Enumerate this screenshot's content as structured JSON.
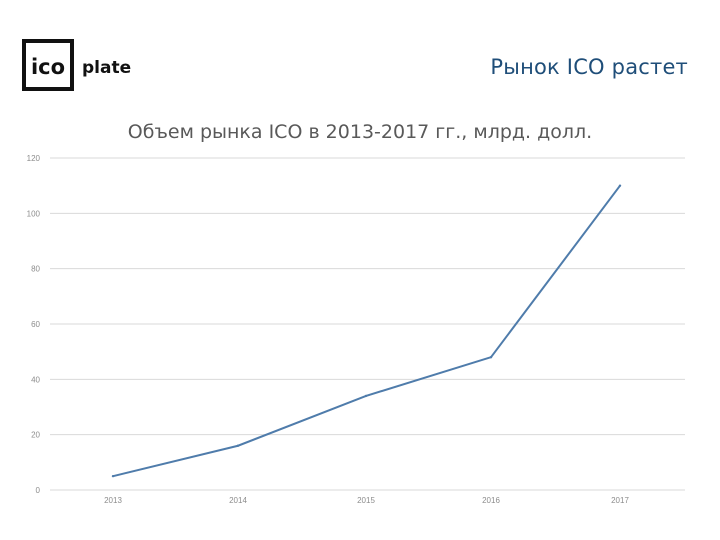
{
  "header": {
    "logo": {
      "left_text": "ico",
      "right_text": "plate",
      "icon": "icoplate-logo"
    },
    "slide_title": "Рынок ICO растет"
  },
  "chart_data": {
    "type": "line",
    "title": "Объем рынка ICO в 2013-2017 гг., млрд. долл.",
    "xlabel": "",
    "ylabel": "",
    "categories": [
      "2013",
      "2014",
      "2015",
      "2016",
      "2017"
    ],
    "series": [
      {
        "values": [
          5,
          16,
          34,
          48,
          110
        ]
      }
    ],
    "ylim": [
      0,
      120
    ],
    "yticks": [
      0,
      20,
      40,
      60,
      80,
      100,
      120
    ],
    "grid": true,
    "legend": "none",
    "line_color": "#4f7cab"
  }
}
